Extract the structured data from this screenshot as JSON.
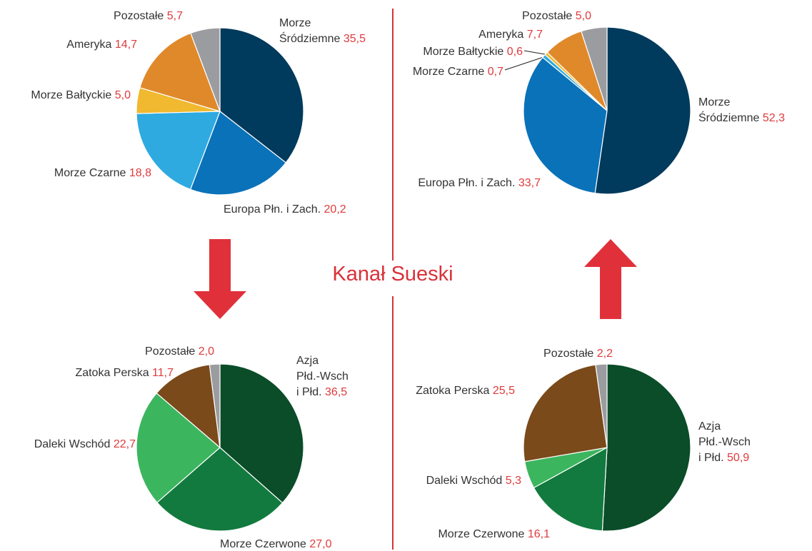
{
  "title": "Kanał Sueski",
  "chart_data": [
    {
      "type": "pie",
      "categories": [
        "Morze\nŚródziemne",
        "Europa Płn. i Zach.",
        "Morze Czarne",
        "Morze Bałtyckie",
        "Ameryka",
        "Pozostałe"
      ],
      "values": [
        35.5,
        20.2,
        18.8,
        5.0,
        14.7,
        5.7
      ],
      "value_labels": [
        "35,5",
        "20,2",
        "18,8",
        "5,0",
        "14,7",
        "5,7"
      ],
      "colors": [
        "#003a5c",
        "#0a72b9",
        "#2eaae1",
        "#f0b92f",
        "#e0892b",
        "#9b9ca0"
      ]
    },
    {
      "type": "pie",
      "categories": [
        "Morze\nŚródziemne",
        "Europa Płn. i Zach.",
        "Morze Czarne",
        "Morze Bałtyckie",
        "Ameryka",
        "Pozostałe"
      ],
      "values": [
        52.3,
        33.7,
        0.7,
        0.6,
        7.7,
        5.0
      ],
      "value_labels": [
        "52,3",
        "33,7",
        "0,7",
        "0,6",
        "7,7",
        "5,0"
      ],
      "colors": [
        "#003a5c",
        "#0a72b9",
        "#2eaae1",
        "#f0b92f",
        "#e0892b",
        "#9b9ca0"
      ]
    },
    {
      "type": "pie",
      "categories": [
        "Azja\nPłd.-Wsch\ni Płd.",
        "Morze Czerwone",
        "Daleki Wschód",
        "Zatoka Perska",
        "Pozostałe"
      ],
      "values": [
        36.5,
        27.0,
        22.7,
        11.7,
        2.0
      ],
      "value_labels": [
        "36,5",
        "27,0",
        "22,7",
        "11,7",
        "2,0"
      ],
      "colors": [
        "#0a4d28",
        "#127a3e",
        "#3cb55f",
        "#7a4a1a",
        "#9b9ca0"
      ]
    },
    {
      "type": "pie",
      "categories": [
        "Azja\nPłd.-Wsch\ni Płd.",
        "Morze Czerwone",
        "Daleki Wschód",
        "Zatoka Perska",
        "Pozostałe"
      ],
      "values": [
        50.9,
        16.1,
        5.3,
        25.5,
        2.2
      ],
      "value_labels": [
        "50,9",
        "16,1",
        "5,3",
        "25,5",
        "2,2"
      ],
      "colors": [
        "#0a4d28",
        "#127a3e",
        "#3cb55f",
        "#7a4a1a",
        "#9b9ca0"
      ]
    }
  ]
}
